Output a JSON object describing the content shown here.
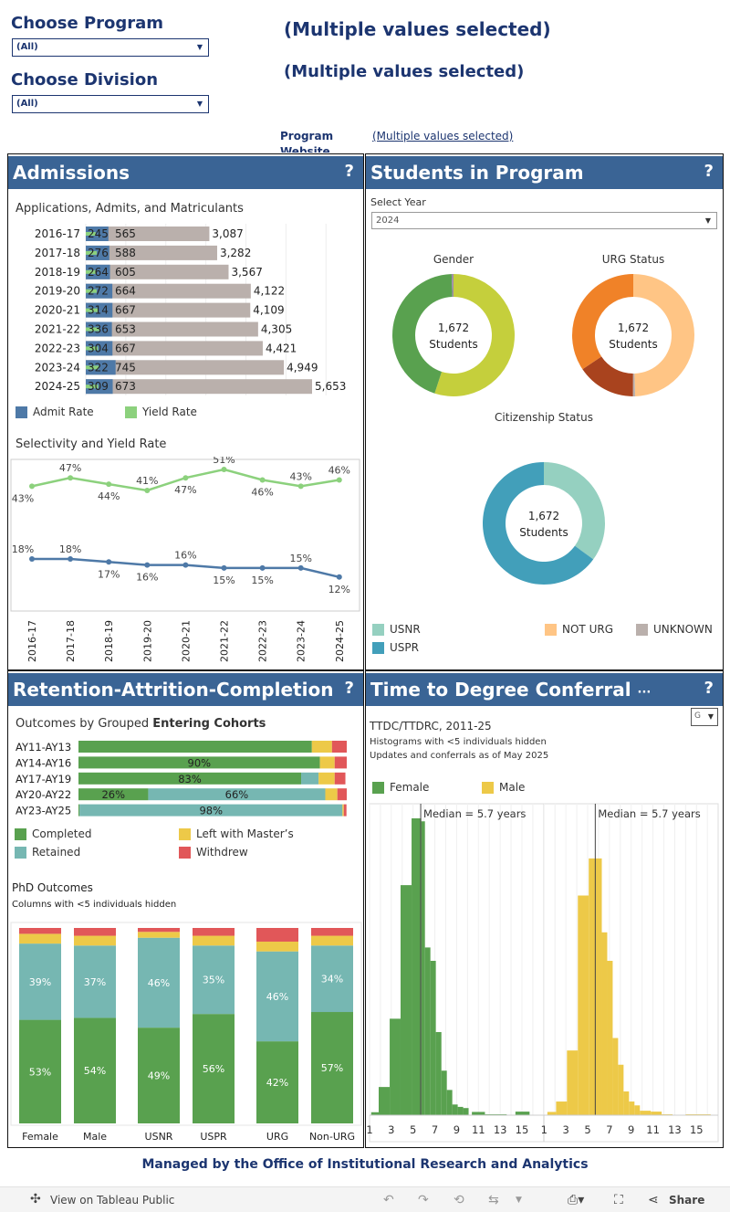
{
  "filters": {
    "program_label": "Choose Program",
    "program_value": "(All)",
    "division_label": "Choose Division",
    "division_value": "(All)",
    "selection_1": "(Multiple values selected)",
    "selection_2": "(Multiple values selected)",
    "website_label": "Program Website",
    "website_link": "(Multiple values selected)"
  },
  "colors": {
    "header": "#3a6495",
    "navy": "#1c3570",
    "applications": "#bab0ac",
    "admits": "#4e79a7",
    "matriculants": "#8cd17d"
  },
  "admissions": {
    "title": "Admissions",
    "help": "?",
    "chart_title": "Applications, Admits, and Matriculants",
    "legend": [
      {
        "label": "Admit Rate",
        "color": "#4e79a7"
      },
      {
        "label": "Yield Rate",
        "color": "#8cd17d"
      }
    ],
    "line_title": "Selectivity and Yield Rate"
  },
  "students": {
    "title": "Students in Program",
    "help": "?",
    "year_label": "Select Year",
    "year_value": "2024",
    "center_value": "1,672",
    "center_label": "Students",
    "legend": [
      {
        "label": "USNR",
        "color": "#95d0c0"
      },
      {
        "label": "USPR",
        "color": "#429fba"
      },
      {
        "label": "NOT URG",
        "color": "#ffc585"
      },
      {
        "label": "UNKNOWN",
        "color": "#bab0ac"
      }
    ]
  },
  "retention": {
    "title": "Retention-Attrition-Completion",
    "help": "?",
    "cohort_title_a": "Outcomes by Grouped ",
    "cohort_title_b": "Entering Cohorts",
    "legend": [
      {
        "label": "Completed",
        "color": "#59a14f"
      },
      {
        "label": "Left with Master’s",
        "color": "#edc948"
      },
      {
        "label": "Retained",
        "color": "#76b7b2"
      },
      {
        "label": "Withdrew",
        "color": "#e15759"
      }
    ],
    "phd_title": "PhD Outcomes",
    "phd_subtitle": "Columns with <5 individuals hidden"
  },
  "ttdc": {
    "title": "Time to Degree Conferral",
    "more": "···",
    "help": "?",
    "dropdown": "G",
    "subtitle": "TTDC/TTDRC, 2011-25",
    "note1": "Histograms with <5 individuals hidden",
    "note2": "Updates and conferrals as of May 2025",
    "legend": [
      {
        "label": "Female",
        "color": "#59a14f"
      },
      {
        "label": "Male",
        "color": "#edc948"
      }
    ],
    "median_label": "Median = 5.7 years"
  },
  "footer": "Managed by the Office of Institutional Research and Analytics",
  "toolbar": {
    "view_label": "View on Tableau Public",
    "share_label": "Share"
  },
  "chart_data": [
    {
      "type": "bar",
      "name": "admissions-funnel",
      "categories": [
        "2016-17",
        "2017-18",
        "2018-19",
        "2019-20",
        "2020-21",
        "2021-22",
        "2022-23",
        "2023-24",
        "2024-25"
      ],
      "series": [
        {
          "name": "Applications",
          "values": [
            3087,
            3282,
            3567,
            4122,
            4109,
            4305,
            4421,
            4949,
            5653
          ]
        },
        {
          "name": "Admits",
          "values": [
            565,
            588,
            605,
            664,
            667,
            653,
            667,
            745,
            673
          ]
        },
        {
          "name": "Matriculants",
          "values": [
            245,
            276,
            264,
            272,
            314,
            336,
            304,
            322,
            309
          ]
        }
      ],
      "labels": {
        "applications": [
          "3,087",
          "3,282",
          "3,567",
          "4,122",
          "4,109",
          "4,305",
          "4,421",
          "4,949",
          "5,653"
        ],
        "admits": [
          "565",
          "588",
          "605",
          "664",
          "667",
          "653",
          "667",
          "745",
          "673"
        ],
        "matriculants": [
          "245",
          "276",
          "264",
          "272",
          "314",
          "336",
          "304",
          "322",
          "309"
        ]
      }
    },
    {
      "type": "line",
      "categories": [
        "2016-17",
        "2017-18",
        "2018-19",
        "2019-20",
        "2020-21",
        "2021-22",
        "2022-23",
        "2023-24",
        "2024-25"
      ],
      "series": [
        {
          "name": "Yield Rate",
          "color": "#8cd17d",
          "values": [
            43,
            47,
            44,
            41,
            47,
            51,
            46,
            43,
            46
          ]
        },
        {
          "name": "Admit Rate",
          "color": "#4e79a7",
          "values": [
            18,
            18,
            17,
            16,
            16,
            15,
            15,
            15,
            12
          ]
        }
      ],
      "unit": "%"
    },
    {
      "type": "pie",
      "title": "Gender",
      "slices": [
        {
          "value": 44.5,
          "color": "#59a14f"
        },
        {
          "value": 55,
          "color": "#c5cf3c"
        },
        {
          "value": 0.5,
          "color": "#a08ca8"
        }
      ]
    },
    {
      "type": "pie",
      "title": "URG Status",
      "slices": [
        {
          "label": "NOT URG",
          "value": 49.5,
          "color": "#ffc585"
        },
        {
          "label": "UNKNOWN",
          "value": 0.6,
          "color": "#bab0ac"
        },
        {
          "value": 15.5,
          "color": "#a9431e"
        },
        {
          "value": 34.4,
          "color": "#f08228"
        }
      ]
    },
    {
      "type": "pie",
      "title": "Citizenship Status",
      "slices": [
        {
          "label": "USNR",
          "value": 35,
          "color": "#95d0c0"
        },
        {
          "label": "USPR",
          "value": 65,
          "color": "#429fba"
        }
      ]
    },
    {
      "type": "bar",
      "stacked": true,
      "orientation": "horizontal",
      "categories": [
        "AY11-AY13",
        "AY14-AY16",
        "AY17-AY19",
        "AY20-AY22",
        "AY23-AY25"
      ],
      "series": [
        {
          "name": "Completed",
          "values": [
            87,
            90,
            83,
            26,
            0.4
          ]
        },
        {
          "name": "Retained",
          "values": [
            0,
            0,
            6.5,
            66,
            98
          ]
        },
        {
          "name": "Left with Master’s",
          "values": [
            7.5,
            5.5,
            6,
            4.5,
            0.5
          ]
        },
        {
          "name": "Withdrew",
          "values": [
            5.5,
            4.5,
            4,
            3.5,
            1
          ]
        }
      ],
      "labels": [
        [
          "",
          "",
          "",
          ""
        ],
        [
          "90%",
          "",
          "",
          ""
        ],
        [
          "83%",
          "",
          "",
          ""
        ],
        [
          "26%",
          "66%",
          "",
          ""
        ],
        [
          "",
          "98%",
          "",
          ""
        ]
      ]
    },
    {
      "type": "bar",
      "stacked": true,
      "categories": [
        "Female",
        "Male",
        "USNR",
        "USPR",
        "URG",
        "Non-URG"
      ],
      "series": [
        {
          "name": "Completed",
          "values": [
            53,
            54,
            49,
            56,
            42,
            57
          ],
          "labels": [
            "53%",
            "54%",
            "49%",
            "56%",
            "42%",
            "57%"
          ]
        },
        {
          "name": "Retained",
          "values": [
            39,
            37,
            46,
            35,
            46,
            34
          ],
          "labels": [
            "39%",
            "37%",
            "46%",
            "35%",
            "46%",
            "34%"
          ]
        },
        {
          "name": "Left with Master’s",
          "values": [
            5,
            5,
            3,
            5,
            5,
            5
          ]
        },
        {
          "name": "Withdrew",
          "values": [
            3,
            4,
            2,
            4,
            7,
            4
          ]
        }
      ]
    },
    {
      "type": "bar",
      "name": "histogram",
      "xlim": [
        1,
        16.5
      ],
      "xticks": [
        "1",
        "3",
        "5",
        "7",
        "9",
        "11",
        "13",
        "15"
      ],
      "median": 5.7,
      "series": [
        {
          "name": "Female",
          "bins": [
            [
              1.15,
              1.84,
              1
            ],
            [
              1.84,
              2.85,
              9.5
            ],
            [
              2.85,
              3.85,
              32.5
            ],
            [
              3.85,
              4.86,
              77.5
            ],
            [
              4.86,
              5.75,
              100
            ],
            [
              5.75,
              6.09,
              99
            ],
            [
              6.09,
              6.59,
              56.5
            ],
            [
              6.59,
              7.09,
              52
            ],
            [
              7.09,
              7.6,
              28
            ],
            [
              7.6,
              8.1,
              15
            ],
            [
              8.1,
              8.6,
              8.5
            ],
            [
              8.6,
              9.1,
              3.6
            ],
            [
              9.1,
              9.6,
              2.8
            ],
            [
              9.6,
              10.1,
              2.4
            ],
            [
              10.4,
              11.6,
              1.1
            ],
            [
              11.6,
              13.6,
              0.3
            ],
            [
              14.4,
              15.7,
              1.2
            ]
          ]
        },
        {
          "name": "Male",
          "bins": [
            [
              1.3,
              2.1,
              1.1
            ],
            [
              2.1,
              3.1,
              4.6
            ],
            [
              3.1,
              4.1,
              21.8
            ],
            [
              4.1,
              5.1,
              74
            ],
            [
              5.1,
              6.3,
              86.5
            ],
            [
              6.3,
              6.8,
              61.6
            ],
            [
              6.8,
              7.3,
              52
            ],
            [
              7.3,
              7.8,
              26
            ],
            [
              7.8,
              8.3,
              17
            ],
            [
              8.3,
              8.8,
              8
            ],
            [
              8.8,
              9.3,
              4.6
            ],
            [
              9.3,
              9.8,
              3.3
            ],
            [
              9.8,
              10.8,
              1.5
            ],
            [
              10.8,
              11.8,
              1.2
            ],
            [
              11.8,
              12.8,
              0.3
            ],
            [
              14,
              16.3,
              0.3
            ]
          ]
        }
      ]
    }
  ]
}
